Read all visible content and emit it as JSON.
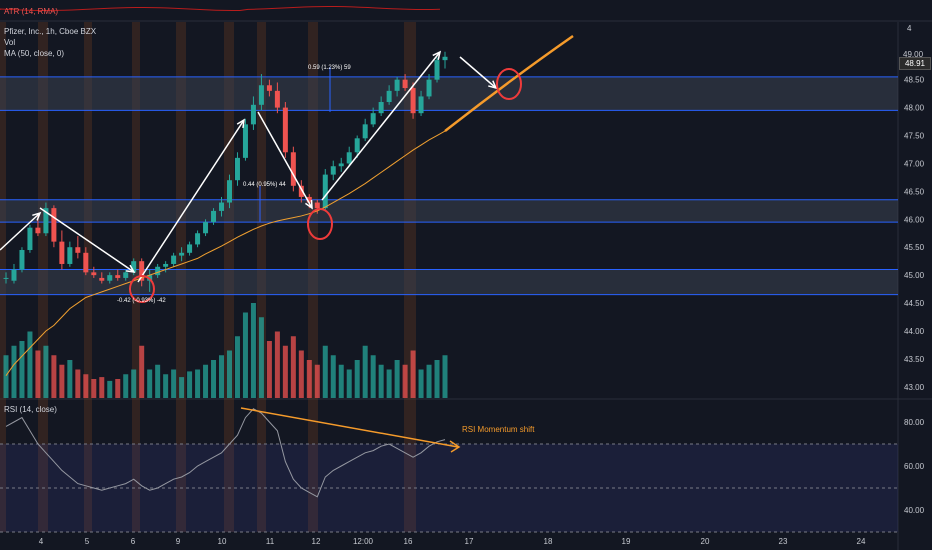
{
  "header": {
    "atr_label": "ATR (14, RMA)",
    "symbol": "Pfizer, Inc., 1h, Cboe BZX",
    "vol_label": "Vol",
    "ma_label": "MA (50, close, 0)",
    "rsi_label": "RSI (14, close)",
    "current_price_tag": "48.91",
    "partial_top_tick": "4",
    "partial_tick_49": "49.00"
  },
  "annotations": {
    "measure_1": "0.59 (1.23%) 59",
    "measure_2": "0.44 (0.95%) 44",
    "measure_3": "-0.42 (-0.93%) -42",
    "rsi_shift": "RSI Momentum shift"
  },
  "colors": {
    "background": "#131722",
    "zone_fill": "#3a4150",
    "zone_border": "#2962ff",
    "bull": "#26a69a",
    "bear": "#ef5350",
    "ma_line": "#f0a030",
    "projection": "#f59b2b",
    "rsi_line": "#9598a1",
    "circle": "#ef3b3b",
    "arrow": "#ffffff",
    "session": "#6b3a1f"
  },
  "chart_data": [
    {
      "type": "candlestick",
      "title": "Pfizer, Inc., 1h, Cboe BZX",
      "x_tick_labels": [
        "4",
        "5",
        "6",
        "9",
        "10",
        "11",
        "12",
        "12:00",
        "16",
        "17",
        "18",
        "19",
        "20",
        "23",
        "24"
      ],
      "y_tick_labels": [
        "48.50",
        "48.00",
        "47.50",
        "47.00",
        "46.50",
        "46.00",
        "45.50",
        "45.00",
        "44.50",
        "44.00",
        "43.50",
        "43.00"
      ],
      "ylim": [
        42.8,
        49.3
      ],
      "support_resistance_zones": [
        [
          47.95,
          48.55
        ],
        [
          45.95,
          46.35
        ],
        [
          44.65,
          45.1
        ]
      ],
      "ohlc": [
        [
          44.95,
          45.05,
          44.85,
          44.95
        ],
        [
          44.9,
          45.2,
          44.85,
          45.1
        ],
        [
          45.1,
          45.5,
          45.05,
          45.45
        ],
        [
          45.45,
          45.9,
          45.4,
          45.85
        ],
        [
          45.85,
          46.1,
          45.7,
          45.75
        ],
        [
          45.75,
          46.3,
          45.7,
          46.2
        ],
        [
          46.2,
          46.25,
          45.5,
          45.6
        ],
        [
          45.6,
          45.8,
          45.1,
          45.2
        ],
        [
          45.2,
          45.6,
          45.15,
          45.5
        ],
        [
          45.5,
          45.7,
          45.3,
          45.4
        ],
        [
          45.4,
          45.5,
          45.0,
          45.05
        ],
        [
          45.05,
          45.15,
          44.95,
          45.0
        ],
        [
          44.95,
          45.05,
          44.85,
          44.9
        ],
        [
          44.9,
          45.05,
          44.85,
          45.0
        ],
        [
          45.0,
          45.1,
          44.9,
          44.95
        ],
        [
          44.95,
          45.1,
          44.9,
          45.05
        ],
        [
          45.05,
          45.3,
          45.0,
          45.25
        ],
        [
          45.25,
          45.3,
          44.8,
          44.9
        ],
        [
          44.9,
          45.1,
          44.7,
          45.0
        ],
        [
          45.0,
          45.2,
          44.95,
          45.15
        ],
        [
          45.15,
          45.25,
          45.05,
          45.2
        ],
        [
          45.2,
          45.4,
          45.15,
          45.35
        ],
        [
          45.35,
          45.5,
          45.25,
          45.4
        ],
        [
          45.4,
          45.6,
          45.35,
          45.55
        ],
        [
          45.55,
          45.8,
          45.5,
          45.75
        ],
        [
          45.75,
          46.0,
          45.7,
          45.95
        ],
        [
          45.95,
          46.2,
          45.9,
          46.15
        ],
        [
          46.15,
          46.4,
          46.05,
          46.3
        ],
        [
          46.3,
          46.8,
          46.2,
          46.7
        ],
        [
          46.7,
          47.2,
          46.6,
          47.1
        ],
        [
          47.1,
          47.8,
          47.05,
          47.7
        ],
        [
          47.7,
          48.2,
          47.6,
          48.05
        ],
        [
          48.05,
          48.6,
          47.95,
          48.4
        ],
        [
          48.4,
          48.5,
          48.2,
          48.3
        ],
        [
          48.3,
          48.45,
          47.9,
          48.0
        ],
        [
          48.0,
          48.1,
          47.1,
          47.2
        ],
        [
          47.2,
          47.3,
          46.5,
          46.6
        ],
        [
          46.6,
          46.7,
          46.3,
          46.4
        ],
        [
          46.4,
          46.45,
          46.2,
          46.3
        ],
        [
          46.3,
          46.35,
          46.1,
          46.2
        ],
        [
          46.2,
          46.9,
          46.15,
          46.8
        ],
        [
          46.8,
          47.05,
          46.7,
          46.95
        ],
        [
          46.95,
          47.1,
          46.85,
          47.0
        ],
        [
          47.0,
          47.3,
          46.95,
          47.2
        ],
        [
          47.2,
          47.5,
          47.1,
          47.45
        ],
        [
          47.45,
          47.8,
          47.4,
          47.7
        ],
        [
          47.7,
          48.0,
          47.65,
          47.9
        ],
        [
          47.9,
          48.2,
          47.85,
          48.1
        ],
        [
          48.1,
          48.4,
          48.05,
          48.3
        ],
        [
          48.3,
          48.55,
          48.2,
          48.5
        ],
        [
          48.5,
          48.6,
          48.3,
          48.35
        ],
        [
          48.35,
          48.45,
          47.8,
          47.9
        ],
        [
          47.9,
          48.3,
          47.85,
          48.2
        ],
        [
          48.2,
          48.6,
          48.15,
          48.5
        ],
        [
          48.5,
          48.9,
          48.45,
          48.85
        ],
        [
          48.85,
          49.0,
          48.7,
          48.91
        ]
      ],
      "volume": [
        0.45,
        0.55,
        0.6,
        0.7,
        0.5,
        0.55,
        0.45,
        0.35,
        0.4,
        0.3,
        0.25,
        0.2,
        0.22,
        0.18,
        0.2,
        0.25,
        0.3,
        0.55,
        0.3,
        0.35,
        0.25,
        0.3,
        0.22,
        0.28,
        0.3,
        0.35,
        0.4,
        0.45,
        0.5,
        0.65,
        0.9,
        1.0,
        0.85,
        0.6,
        0.7,
        0.55,
        0.65,
        0.5,
        0.4,
        0.35,
        0.55,
        0.45,
        0.35,
        0.3,
        0.4,
        0.55,
        0.45,
        0.35,
        0.3,
        0.4,
        0.35,
        0.5,
        0.3,
        0.35,
        0.4,
        0.45
      ],
      "ma50": [
        43.2,
        43.4,
        43.55,
        43.7,
        43.85,
        44.0,
        44.1,
        44.25,
        44.4,
        44.5,
        44.6,
        44.65,
        44.7,
        44.75,
        44.8,
        44.85,
        44.9,
        44.95,
        45.0,
        45.05,
        45.1,
        45.15,
        45.2,
        45.25,
        45.3,
        45.38,
        45.45,
        45.52,
        45.6,
        45.68,
        45.75,
        45.82,
        45.88,
        45.93,
        45.97,
        46.0,
        46.03,
        46.06,
        46.1,
        46.15,
        46.22,
        46.3,
        46.38,
        46.46,
        46.55,
        46.64,
        46.74,
        46.84,
        46.94,
        47.04,
        47.14,
        47.24,
        47.33,
        47.42,
        47.5,
        47.58
      ]
    },
    {
      "type": "line",
      "title": "RSI (14, close)",
      "y_tick_labels": [
        "80.00",
        "60.00",
        "40.00"
      ],
      "ylim": [
        30,
        90
      ],
      "reference_levels": [
        70,
        50,
        30
      ],
      "values": [
        78,
        80,
        82,
        76,
        70,
        66,
        62,
        58,
        55,
        52,
        51,
        50,
        49,
        50,
        51,
        52,
        54,
        51,
        49,
        50,
        52,
        54,
        55,
        57,
        60,
        62,
        64,
        66,
        70,
        74,
        82,
        86,
        84,
        80,
        76,
        62,
        54,
        50,
        48,
        46,
        55,
        58,
        60,
        62,
        64,
        66,
        67,
        69,
        70,
        68,
        66,
        64,
        66,
        69,
        71,
        72
      ]
    }
  ]
}
